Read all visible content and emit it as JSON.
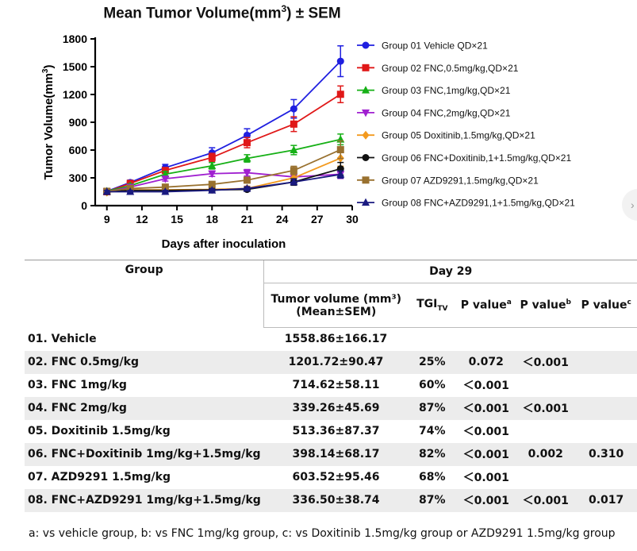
{
  "figure": {
    "title_main": "Mean Tumor Volume(mm",
    "title_sup": "3",
    "title_tail": ") ± SEM"
  },
  "chart_data": {
    "type": "line",
    "ylabel": "Tumor Volume(mm3)",
    "xlabel": "Days after inoculation",
    "xlim": [
      8,
      30
    ],
    "ylim": [
      0,
      1800
    ],
    "xticks": [
      9,
      12,
      15,
      18,
      21,
      24,
      27,
      30
    ],
    "yticks": [
      0,
      300,
      600,
      900,
      1200,
      1500,
      1800
    ],
    "grid": false,
    "legend_position": "right",
    "x": [
      9,
      11,
      14,
      18,
      21,
      25,
      29
    ],
    "series": [
      {
        "name": "Group 01 Vehicle QD×21",
        "color": "#1f1fe0",
        "marker": "circle",
        "values": [
          155,
          250,
          410,
          570,
          760,
          1045,
          1559
        ],
        "err": [
          18,
          25,
          35,
          55,
          70,
          100,
          166
        ]
      },
      {
        "name": "Group 02 FNC,0.5mg/kg,QD×21",
        "color": "#e01818",
        "marker": "square",
        "values": [
          150,
          240,
          380,
          520,
          680,
          880,
          1202
        ],
        "err": [
          18,
          22,
          30,
          45,
          55,
          80,
          90
        ]
      },
      {
        "name": "Group 03 FNC,1mg/kg,QD×21",
        "color": "#16b016",
        "marker": "triangle-up",
        "values": [
          155,
          215,
          340,
          430,
          510,
          600,
          715
        ],
        "err": [
          15,
          20,
          28,
          35,
          40,
          50,
          58
        ]
      },
      {
        "name": "Group 04 FNC,2mg/kg,QD×21",
        "color": "#a020d0",
        "marker": "triangle-down",
        "values": [
          150,
          200,
          290,
          345,
          355,
          310,
          339
        ],
        "err": [
          15,
          18,
          25,
          30,
          35,
          40,
          46
        ]
      },
      {
        "name": "Group 05 Doxitinib,1.5mg/kg,QD×21",
        "color": "#f39a1e",
        "marker": "diamond",
        "values": [
          145,
          170,
          170,
          175,
          185,
          300,
          513
        ],
        "err": [
          14,
          16,
          18,
          20,
          25,
          45,
          87
        ]
      },
      {
        "name": "Group 06 FNC+Doxitinib,1+1.5mg/kg,QD×21",
        "color": "#111111",
        "marker": "circle",
        "values": [
          150,
          165,
          165,
          170,
          175,
          255,
          398
        ],
        "err": [
          14,
          15,
          16,
          18,
          20,
          35,
          68
        ]
      },
      {
        "name": "Group 07 AZD9291,1.5mg/kg,QD×21",
        "color": "#99712f",
        "marker": "square",
        "values": [
          155,
          185,
          200,
          230,
          275,
          380,
          604
        ],
        "err": [
          15,
          18,
          20,
          25,
          30,
          45,
          95
        ]
      },
      {
        "name": "Group 08 FNC+AZD9291,1+1.5mg/kg,QD×21",
        "color": "#1a1a80",
        "marker": "triangle-up",
        "values": [
          150,
          150,
          150,
          165,
          185,
          255,
          337
        ],
        "err": [
          14,
          14,
          15,
          16,
          20,
          30,
          39
        ]
      }
    ]
  },
  "table": {
    "day_header": "Day 29",
    "col_group": "Group",
    "col_volume_l1": "Tumor volume (mm³)",
    "col_volume_l2": "(Mean±SEM)",
    "col_tgi": "TGI",
    "col_tgi_sub": "TV",
    "col_pa": "P value",
    "col_pa_sup": "a",
    "col_pb": "P value",
    "col_pb_sup": "b",
    "col_pc": "P value",
    "col_pc_sup": "c",
    "rows": [
      {
        "group": "01. Vehicle",
        "volume": "1558.86±166.17",
        "tgi": "",
        "pa": "",
        "pb": "",
        "pc": ""
      },
      {
        "group": "02. FNC 0.5mg/kg",
        "volume": "1201.72±90.47",
        "tgi": "25%",
        "pa": "0.072",
        "pb": "＜0.001",
        "pc": ""
      },
      {
        "group": "03. FNC 1mg/kg",
        "volume": "714.62±58.11",
        "tgi": "60%",
        "pa": "＜0.001",
        "pb": "",
        "pc": ""
      },
      {
        "group": "04. FNC 2mg/kg",
        "volume": "339.26±45.69",
        "tgi": "87%",
        "pa": "＜0.001",
        "pb": "＜0.001",
        "pc": ""
      },
      {
        "group": "05. Doxitinib 1.5mg/kg",
        "volume": "513.36±87.37",
        "tgi": "74%",
        "pa": "＜0.001",
        "pb": "",
        "pc": ""
      },
      {
        "group": "06. FNC+Doxitinib 1mg/kg+1.5mg/kg",
        "volume": "398.14±68.17",
        "tgi": "82%",
        "pa": "＜0.001",
        "pb": "0.002",
        "pc": "0.310"
      },
      {
        "group": "07. AZD9291 1.5mg/kg",
        "volume": "603.52±95.46",
        "tgi": "68%",
        "pa": "＜0.001",
        "pb": "",
        "pc": ""
      },
      {
        "group": "08. FNC+AZD9291 1mg/kg+1.5mg/kg",
        "volume": "336.50±38.74",
        "tgi": "87%",
        "pa": "＜0.001",
        "pb": "＜0.001",
        "pc": "0.017"
      }
    ]
  },
  "footnote": "a: vs vehicle group, b: vs  FNC 1mg/kg group, c: vs Doxitinib 1.5mg/kg group or AZD9291 1.5mg/kg group"
}
